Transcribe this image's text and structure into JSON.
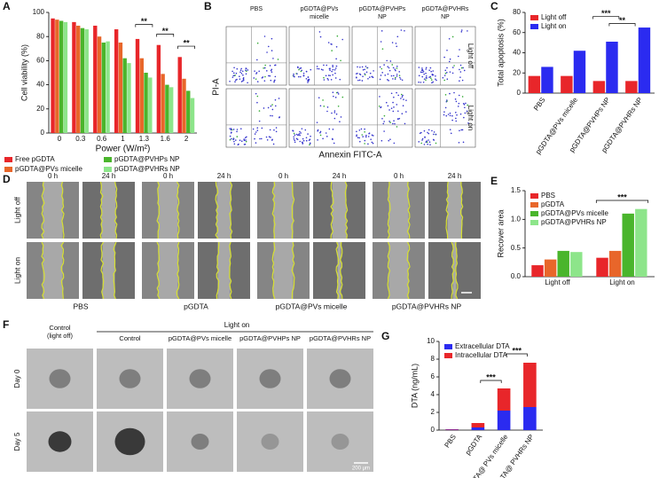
{
  "chart_data": [
    {
      "type": "bar",
      "panel": "A",
      "x_label": "Power (W/m²)",
      "y_label": "Cell viability (%)",
      "categories": [
        "0",
        "0.3",
        "0.6",
        "1",
        "1.3",
        "1.6",
        "2"
      ],
      "series": [
        {
          "name": "Free pGDTA",
          "color": "#e8262a",
          "values": [
            95,
            92,
            89,
            86,
            78,
            73,
            63
          ]
        },
        {
          "name": "pGDTA@PVs micelle",
          "color": "#e8662a",
          "values": [
            94,
            89,
            80,
            75,
            62,
            49,
            45
          ]
        },
        {
          "name": "pGDTA@PVHPs NP",
          "color": "#4ab52c",
          "values": [
            93,
            87,
            75,
            62,
            50,
            40,
            35
          ]
        },
        {
          "name": "pGDTA@PVHRs NP",
          "color": "#8de58a",
          "values": [
            92,
            86,
            76,
            58,
            46,
            38,
            29
          ]
        }
      ],
      "ylim": [
        0,
        100
      ],
      "yticks": [
        0,
        20,
        40,
        60,
        80,
        100
      ],
      "legend": "bottom",
      "annotations": [
        "**",
        "**",
        "**"
      ]
    },
    {
      "type": "bar",
      "panel": "C",
      "y_label": "Total apoptosis (%)",
      "categories": [
        "PBS",
        "pGDTA@PVs micelle",
        "pGDTA@PVHPs NP",
        "pGDTA@PVHRs NP"
      ],
      "series": [
        {
          "name": "Light off",
          "color": "#e8262a",
          "values": [
            17,
            17,
            12,
            12
          ]
        },
        {
          "name": "Light on",
          "color": "#2b2bf0",
          "values": [
            26,
            42,
            51,
            65
          ]
        }
      ],
      "ylim": [
        0,
        80
      ],
      "yticks": [
        0,
        20,
        40,
        60,
        80
      ],
      "legend": "upper left",
      "annotations": [
        "***",
        "**"
      ]
    },
    {
      "type": "bar",
      "panel": "E",
      "y_label": "Recover area",
      "categories": [
        "Light off",
        "Light on"
      ],
      "series": [
        {
          "name": "PBS",
          "color": "#e8262a",
          "values": [
            0.2,
            0.33
          ]
        },
        {
          "name": "pGDTA",
          "color": "#e8662a",
          "values": [
            0.3,
            0.45
          ]
        },
        {
          "name": "pGDTA@PVs micelle",
          "color": "#4ab52c",
          "values": [
            0.45,
            1.1
          ]
        },
        {
          "name": "pGDTA@PVHRs NP",
          "color": "#8de58a",
          "values": [
            0.43,
            1.18
          ]
        }
      ],
      "ylim": [
        0,
        1.5
      ],
      "yticks": [
        {
          "value": 0,
          "label": "0.0"
        },
        {
          "value": 0.5,
          "label": "0.5"
        },
        {
          "value": 1,
          "label": "1.0"
        },
        {
          "value": 1.5,
          "label": "1.5"
        }
      ],
      "legend": "upper left",
      "annotations": [
        "***"
      ]
    },
    {
      "type": "bar",
      "stacked": true,
      "panel": "G",
      "y_label": "DTA (ng/mL)",
      "categories": [
        "PBS",
        "pGDTA",
        "pGDTA@ PVs micelle",
        "pGDTA@ PVHRs NP"
      ],
      "series": [
        {
          "name": "Extracellular DTA",
          "color": "#2b2bf0",
          "values": [
            0.05,
            0.3,
            2.2,
            2.6
          ]
        },
        {
          "name": "Intracellular DTA",
          "color": "#e8262a",
          "values": [
            0.05,
            0.5,
            2.5,
            5.0
          ]
        }
      ],
      "ylim": [
        0,
        10
      ],
      "yticks": [
        0,
        2,
        4,
        6,
        8,
        10
      ],
      "legend": "upper left",
      "annotations": [
        "***",
        "***"
      ]
    }
  ],
  "flow": {
    "panel": "B",
    "columns": [
      [
        "PBS"
      ],
      [
        "pGDTA@PVs",
        "micelle"
      ],
      [
        "pGDTA@PVHPs",
        "NP"
      ],
      [
        "pGDTA@PVHRs",
        "NP"
      ]
    ],
    "rows": [
      "Light off",
      "Light on"
    ],
    "x_label": "Annexin FITC-A",
    "y_label": "PI-A"
  },
  "wound": {
    "panel": "D",
    "times": [
      "0 h",
      "24 h"
    ],
    "rows": [
      "Light off",
      "Light on"
    ],
    "groups": [
      "PBS",
      "pGDTA",
      "pGDTA@PVs micelle",
      "pGDTA@PVHRs NP"
    ]
  },
  "spheroid": {
    "panel": "F",
    "group_header": "Light on",
    "columns": [
      [
        "Control",
        "(light off)"
      ],
      [
        "Control"
      ],
      [
        "pGDTA@PVs micelle"
      ],
      [
        "pGDTA@PVHPs NP"
      ],
      [
        "pGDTA@PVHRs NP"
      ]
    ],
    "rows": [
      "Day 0",
      "Day 5"
    ],
    "scale_bar": "200 μm"
  }
}
